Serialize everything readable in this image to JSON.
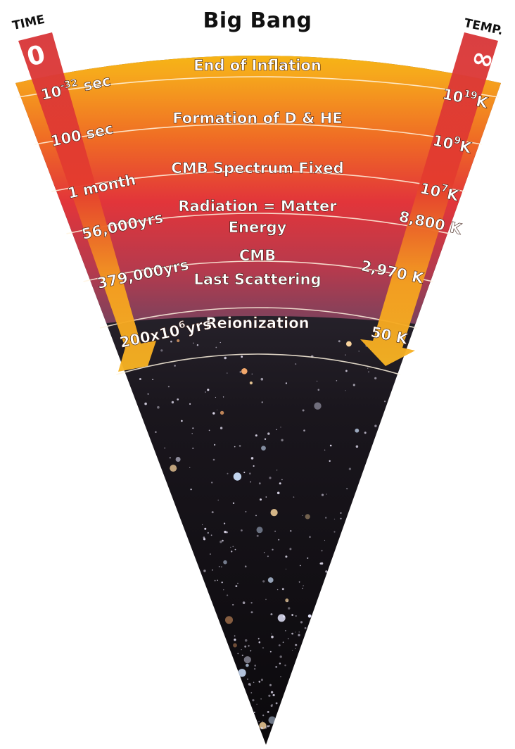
{
  "title": "Big Bang",
  "time_heading": "TIME",
  "temp_heading": "TEMP.",
  "time_start": "0",
  "temp_start": "∞",
  "epochs": [
    {
      "name": "End of Inflation",
      "time": "10-32 sec",
      "temp": "1019K"
    },
    {
      "name": "Formation of D & HE",
      "time": "100 sec",
      "temp": "109K"
    },
    {
      "name": "CMB Spectrum Fixed",
      "time": "1 month",
      "temp": "107K"
    },
    {
      "name": "Radiation = Matter Energy",
      "time": "56,000yrs",
      "temp": "8,800 K"
    },
    {
      "name": "CMB Last Scattering",
      "time": "379,000yrs",
      "temp": "2,970 K"
    },
    {
      "name": "Reionization",
      "time": "200x106yrs",
      "temp": "50 K"
    }
  ],
  "colors": {
    "band_yellow": "#f7d000",
    "band_orange": "#f29a1d",
    "band_red": "#e2383a",
    "band_purple": "#6a3a62",
    "space_dark": "#0d0b10",
    "arrow_red": "#d92f2f",
    "arrow_orange": "#f5a623"
  }
}
